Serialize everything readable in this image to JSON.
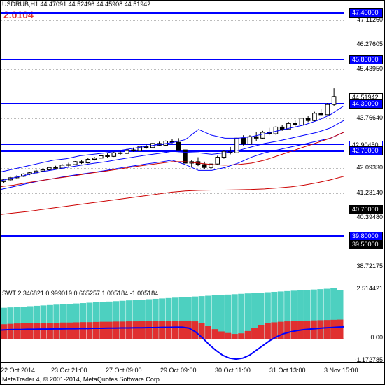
{
  "header": {
    "symbol": "USDRUB,H1",
    "ohlc": [
      "44.47091",
      "44.52496",
      "44.45908",
      "44.51942"
    ],
    "version": "2.0104"
  },
  "priceChart": {
    "ylim": [
      38.0,
      47.5
    ],
    "grid_color": "#bbbbbb",
    "background_color": "#ffffff",
    "ylabels": [
      {
        "v": 47.4,
        "text": "47.40000",
        "boxed": true,
        "bg": "#0000ff",
        "fg": "#ffffff"
      },
      {
        "v": 47.1126,
        "text": "47.11260"
      },
      {
        "v": 46.27605,
        "text": "46.27605"
      },
      {
        "v": 45.8,
        "text": "45.80000",
        "boxed": true,
        "bg": "#0000ff",
        "fg": "#ffffff"
      },
      {
        "v": 45.4395,
        "text": "45.43950"
      },
      {
        "v": 44.51942,
        "text": "44.51942",
        "boxed": true,
        "bg": "#ffffff",
        "fg": "#000000",
        "border": "#000"
      },
      {
        "v": 44.3,
        "text": "44.30000",
        "boxed": true,
        "bg": "#0000ff",
        "fg": "#ffffff"
      },
      {
        "v": 43.7664,
        "text": "43.76640"
      },
      {
        "v": 42.9045,
        "text": "42.90450",
        "boxed": true,
        "bg": "#ffffff",
        "fg": "#000000",
        "border": "#0000ff"
      },
      {
        "v": 42.7,
        "text": "42.70000",
        "boxed": true,
        "bg": "#0000ff",
        "fg": "#ffffff"
      },
      {
        "v": 42.0933,
        "text": "42.09330"
      },
      {
        "v": 41.2314,
        "text": "41.23140"
      },
      {
        "v": 40.7,
        "text": "40.70000",
        "boxed": true,
        "bg": "#000000",
        "fg": "#ffffff"
      },
      {
        "v": 40.3948,
        "text": "40.39480"
      },
      {
        "v": 39.8,
        "text": "39.80000",
        "boxed": true,
        "bg": "#0000ff",
        "fg": "#ffffff"
      },
      {
        "v": 39.5,
        "text": "39.50000",
        "boxed": true,
        "bg": "#000000",
        "fg": "#ffffff"
      },
      {
        "v": 38.72175,
        "text": "38.72175"
      }
    ],
    "hlines": [
      {
        "v": 47.4,
        "color": "#0000ff",
        "width": 3
      },
      {
        "v": 45.8,
        "color": "#0000ff",
        "width": 2
      },
      {
        "v": 44.51942,
        "color": "#000000",
        "width": 1,
        "dash": true
      },
      {
        "v": 44.3,
        "color": "#0000ff",
        "width": 1
      },
      {
        "v": 42.9045,
        "color": "#0000ff",
        "width": 1
      },
      {
        "v": 42.7,
        "color": "#0000ff",
        "width": 3
      },
      {
        "v": 40.7,
        "color": "#000000",
        "width": 1
      },
      {
        "v": 39.8,
        "color": "#0000ff",
        "width": 2
      },
      {
        "v": 39.5,
        "color": "#000000",
        "width": 1
      }
    ],
    "gridY": [
      47.1126,
      46.27605,
      45.4395,
      44.6,
      43.7664,
      42.9045,
      42.0933,
      41.2314,
      40.3948,
      39.5,
      38.72175
    ],
    "maLines": {
      "blueUpper": {
        "color": "#0000ff",
        "width": 1,
        "pts": [
          41.95,
          42.05,
          42.15,
          42.25,
          42.35,
          42.4,
          42.5,
          42.55,
          42.6,
          42.68,
          42.75,
          42.82,
          42.88,
          42.95,
          43.05,
          43.4,
          43.2,
          43.1,
          43.1,
          43.15,
          43.25,
          43.35,
          43.45,
          43.55,
          43.7,
          43.9,
          44.2
        ]
      },
      "blueLower": {
        "color": "#0000ff",
        "width": 1,
        "pts": [
          41.35,
          41.45,
          41.55,
          41.65,
          41.72,
          41.8,
          41.87,
          41.93,
          42.0,
          42.08,
          42.15,
          42.22,
          42.28,
          42.35,
          42.2,
          42.0,
          42.0,
          42.1,
          42.25,
          42.45,
          42.6,
          42.7,
          42.8,
          42.9,
          43.0,
          43.1,
          43.3
        ]
      },
      "blueMid": {
        "color": "#0000ff",
        "width": 1,
        "pts": [
          41.65,
          41.75,
          41.85,
          41.95,
          42.02,
          42.1,
          42.17,
          42.24,
          42.3,
          42.38,
          42.45,
          42.52,
          42.58,
          42.65,
          42.62,
          42.6,
          42.55,
          42.6,
          42.68,
          42.8,
          42.92,
          43.0,
          43.1,
          43.2,
          43.3,
          43.45,
          43.7
        ]
      },
      "redUpper": {
        "color": "#cc0000",
        "width": 1,
        "pts": [
          41.45,
          41.5,
          41.58,
          41.65,
          41.72,
          41.78,
          41.85,
          41.92,
          41.98,
          42.05,
          42.12,
          42.18,
          42.24,
          42.3,
          42.3,
          42.25,
          42.2,
          42.18,
          42.2,
          42.25,
          42.35,
          42.5,
          42.65,
          42.8,
          42.95,
          43.1,
          43.3
        ]
      },
      "redLower": {
        "color": "#cc0000",
        "width": 1,
        "pts": [
          40.5,
          40.55,
          40.6,
          40.66,
          40.72,
          40.78,
          40.84,
          40.9,
          40.96,
          41.02,
          41.08,
          41.14,
          41.2,
          41.26,
          41.3,
          41.32,
          41.33,
          41.33,
          41.34,
          41.35,
          41.37,
          41.4,
          41.44,
          41.5,
          41.58,
          41.68,
          41.8
        ]
      }
    },
    "candles": {
      "color_black": "#000000",
      "color_white": "#ffffff",
      "data": [
        {
          "o": 41.62,
          "h": 41.72,
          "l": 41.58,
          "c": 41.68
        },
        {
          "o": 41.68,
          "h": 41.78,
          "l": 41.65,
          "c": 41.75
        },
        {
          "o": 41.75,
          "h": 41.84,
          "l": 41.72,
          "c": 41.8
        },
        {
          "o": 41.8,
          "h": 41.9,
          "l": 41.78,
          "c": 41.88
        },
        {
          "o": 41.88,
          "h": 41.96,
          "l": 41.84,
          "c": 41.92
        },
        {
          "o": 41.92,
          "h": 42.02,
          "l": 41.9,
          "c": 41.98
        },
        {
          "o": 41.98,
          "h": 42.06,
          "l": 41.94,
          "c": 42.02
        },
        {
          "o": 42.02,
          "h": 42.12,
          "l": 42.0,
          "c": 42.1
        },
        {
          "o": 42.1,
          "h": 42.16,
          "l": 42.04,
          "c": 42.08
        },
        {
          "o": 42.08,
          "h": 42.22,
          "l": 42.06,
          "c": 42.18
        },
        {
          "o": 42.18,
          "h": 42.26,
          "l": 42.12,
          "c": 42.2
        },
        {
          "o": 42.2,
          "h": 42.32,
          "l": 42.18,
          "c": 42.3
        },
        {
          "o": 42.3,
          "h": 42.36,
          "l": 42.22,
          "c": 42.26
        },
        {
          "o": 42.26,
          "h": 42.42,
          "l": 42.24,
          "c": 42.38
        },
        {
          "o": 42.38,
          "h": 42.46,
          "l": 42.34,
          "c": 42.42
        },
        {
          "o": 42.42,
          "h": 42.52,
          "l": 42.4,
          "c": 42.5
        },
        {
          "o": 42.5,
          "h": 42.58,
          "l": 42.44,
          "c": 42.48
        },
        {
          "o": 42.48,
          "h": 42.64,
          "l": 42.46,
          "c": 42.6
        },
        {
          "o": 42.6,
          "h": 42.68,
          "l": 42.54,
          "c": 42.58
        },
        {
          "o": 42.58,
          "h": 42.74,
          "l": 42.56,
          "c": 42.7
        },
        {
          "o": 42.7,
          "h": 42.78,
          "l": 42.64,
          "c": 42.68
        },
        {
          "o": 42.68,
          "h": 42.84,
          "l": 42.66,
          "c": 42.82
        },
        {
          "o": 42.82,
          "h": 42.88,
          "l": 42.74,
          "c": 42.78
        },
        {
          "o": 42.78,
          "h": 42.94,
          "l": 42.76,
          "c": 42.92
        },
        {
          "o": 42.92,
          "h": 42.98,
          "l": 42.84,
          "c": 42.86
        },
        {
          "o": 42.86,
          "h": 43.02,
          "l": 42.84,
          "c": 43.0
        },
        {
          "o": 43.0,
          "h": 43.06,
          "l": 42.92,
          "c": 42.96
        },
        {
          "o": 42.96,
          "h": 43.1,
          "l": 42.9,
          "c": 42.7
        },
        {
          "o": 42.7,
          "h": 42.75,
          "l": 42.2,
          "c": 42.25
        },
        {
          "o": 42.25,
          "h": 42.35,
          "l": 42.1,
          "c": 42.3
        },
        {
          "o": 42.3,
          "h": 42.45,
          "l": 42.15,
          "c": 42.2
        },
        {
          "o": 42.2,
          "h": 42.3,
          "l": 42.05,
          "c": 42.1
        },
        {
          "o": 42.1,
          "h": 42.25,
          "l": 42.0,
          "c": 42.22
        },
        {
          "o": 42.22,
          "h": 42.5,
          "l": 42.18,
          "c": 42.45
        },
        {
          "o": 42.45,
          "h": 42.7,
          "l": 42.4,
          "c": 42.65
        },
        {
          "o": 42.65,
          "h": 42.8,
          "l": 42.55,
          "c": 42.6
        },
        {
          "o": 42.6,
          "h": 43.15,
          "l": 42.58,
          "c": 43.1
        },
        {
          "o": 43.1,
          "h": 43.2,
          "l": 42.85,
          "c": 42.9
        },
        {
          "o": 42.9,
          "h": 43.2,
          "l": 42.88,
          "c": 43.15
        },
        {
          "o": 43.15,
          "h": 43.3,
          "l": 43.0,
          "c": 43.1
        },
        {
          "o": 43.1,
          "h": 43.35,
          "l": 43.08,
          "c": 43.3
        },
        {
          "o": 43.3,
          "h": 43.45,
          "l": 43.2,
          "c": 43.25
        },
        {
          "o": 43.25,
          "h": 43.5,
          "l": 43.22,
          "c": 43.48
        },
        {
          "o": 43.48,
          "h": 43.55,
          "l": 43.35,
          "c": 43.4
        },
        {
          "o": 43.4,
          "h": 43.65,
          "l": 43.38,
          "c": 43.6
        },
        {
          "o": 43.6,
          "h": 43.7,
          "l": 43.5,
          "c": 43.55
        },
        {
          "o": 43.55,
          "h": 43.8,
          "l": 43.52,
          "c": 43.78
        },
        {
          "o": 43.78,
          "h": 43.85,
          "l": 43.65,
          "c": 43.7
        },
        {
          "o": 43.7,
          "h": 44.0,
          "l": 43.68,
          "c": 43.95
        },
        {
          "o": 43.95,
          "h": 44.1,
          "l": 43.85,
          "c": 43.9
        },
        {
          "o": 43.9,
          "h": 44.3,
          "l": 43.88,
          "c": 44.25
        },
        {
          "o": 44.25,
          "h": 44.8,
          "l": 44.2,
          "c": 44.52
        }
      ]
    }
  },
  "indicator": {
    "name": "SWT",
    "values": [
      "2.346821",
      "0.999019",
      "0.665257",
      "1.005184",
      "-1.005184"
    ],
    "ylim": [
      -1.3,
      2.6
    ],
    "ylabels": [
      {
        "v": 2.514421,
        "text": "2.514421"
      },
      {
        "v": 0.0,
        "text": "0.00"
      },
      {
        "v": -1.172785,
        "text": "-1.172785"
      }
    ],
    "zeroline_color": "#bbbbbb",
    "histTop": {
      "color": "#4dd0c0",
      "vals": [
        1.6,
        1.62,
        1.64,
        1.66,
        1.68,
        1.7,
        1.72,
        1.74,
        1.76,
        1.78,
        1.8,
        1.82,
        1.84,
        1.86,
        1.88,
        1.9,
        1.92,
        1.94,
        1.96,
        1.98,
        2.0,
        2.02,
        2.04,
        2.06,
        2.08,
        2.1,
        2.12,
        2.14,
        2.16,
        2.18,
        2.2,
        2.22,
        2.24,
        2.26,
        2.28,
        2.3,
        2.32,
        2.34,
        2.36,
        2.38,
        2.4,
        2.42,
        2.44,
        2.46,
        2.48,
        2.5,
        2.52,
        2.54,
        2.56,
        2.58,
        2.6,
        2.51
      ]
    },
    "histBot": {
      "color": "#e03030",
      "vals": [
        0.75,
        0.77,
        0.79,
        0.8,
        0.8,
        0.81,
        0.81,
        0.82,
        0.83,
        0.84,
        0.84,
        0.85,
        0.86,
        0.86,
        0.87,
        0.88,
        0.88,
        0.89,
        0.89,
        0.9,
        0.9,
        0.91,
        0.91,
        0.92,
        0.92,
        0.93,
        0.93,
        0.94,
        0.94,
        0.9,
        0.8,
        0.65,
        0.5,
        0.38,
        0.3,
        0.25,
        0.28,
        0.4,
        0.55,
        0.7,
        0.8,
        0.85,
        0.88,
        0.9,
        0.92,
        0.93,
        0.94,
        0.95,
        0.96,
        0.97,
        0.98,
        0.99
      ]
    },
    "oscillator": {
      "color": "#0000ff",
      "width": 2,
      "vals": [
        0.45,
        0.47,
        0.48,
        0.48,
        0.49,
        0.49,
        0.5,
        0.5,
        0.51,
        0.51,
        0.52,
        0.52,
        0.53,
        0.53,
        0.54,
        0.54,
        0.55,
        0.55,
        0.56,
        0.56,
        0.57,
        0.57,
        0.58,
        0.58,
        0.59,
        0.59,
        0.6,
        0.6,
        0.55,
        0.35,
        0.05,
        -0.3,
        -0.6,
        -0.85,
        -1.0,
        -1.05,
        -1.0,
        -0.85,
        -0.6,
        -0.35,
        -0.1,
        0.1,
        0.25,
        0.35,
        0.42,
        0.47,
        0.5,
        0.53,
        0.56,
        0.58,
        0.6,
        0.62
      ]
    }
  },
  "timeAxis": {
    "labels": [
      "22 Oct 2014",
      "23 Oct 21:00",
      "27 Oct 09:00",
      "29 Oct 09:00",
      "30 Oct 11:00",
      "31 Oct 13:00",
      "3 Nov 15:00"
    ],
    "positions": [
      0,
      72,
      150,
      228,
      306,
      384,
      462
    ]
  },
  "footer": {
    "copyright": "MetaTrader 4, © 2001-2014, MetaQuotes Software Corp."
  }
}
